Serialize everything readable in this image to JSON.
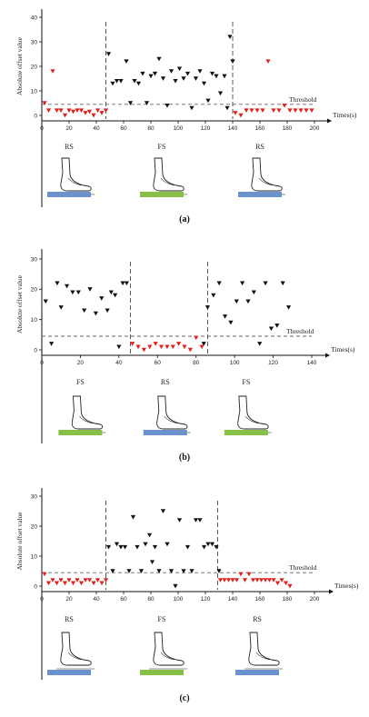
{
  "colors": {
    "black": "#111111",
    "red": "#e0201c",
    "blue": "#6a93cc",
    "green": "#86c046",
    "dash": "#666666"
  },
  "icons": [
    "foot-on-sensor-icon"
  ],
  "chart_data": [
    {
      "type": "scatter",
      "ylabel": "Absolute offset value",
      "xlabel": "Times(s)",
      "threshold_label": "Threshold",
      "threshold": 4.5,
      "xlim": [
        0,
        200
      ],
      "ylim": [
        0,
        40
      ],
      "xticks": [
        0,
        20,
        40,
        60,
        80,
        100,
        120,
        140,
        160,
        180,
        200
      ],
      "yticks": [
        0,
        10,
        20,
        30,
        40
      ],
      "boundaries": [
        47,
        140
      ],
      "phases": [
        {
          "label": "RS",
          "x": 20,
          "color": "blue"
        },
        {
          "label": "FS",
          "x": 88,
          "color": "green"
        },
        {
          "label": "RS",
          "x": 160,
          "color": "blue"
        }
      ],
      "panel_label": "(a)",
      "series": [
        {
          "color": "red",
          "points": [
            [
              2,
              5
            ],
            [
              8,
              18
            ],
            [
              5,
              2
            ],
            [
              11,
              2
            ],
            [
              14,
              2
            ],
            [
              17,
              0
            ],
            [
              20,
              2
            ],
            [
              23,
              1.5
            ],
            [
              26,
              2
            ],
            [
              29,
              2
            ],
            [
              32,
              1
            ],
            [
              35,
              1.5
            ],
            [
              38,
              0
            ],
            [
              41,
              2
            ],
            [
              44,
              1
            ],
            [
              47,
              2
            ],
            [
              142,
              1
            ],
            [
              146,
              0
            ],
            [
              150,
              2
            ],
            [
              154,
              2
            ],
            [
              158,
              2
            ],
            [
              162,
              2
            ],
            [
              166,
              22
            ],
            [
              170,
              2
            ],
            [
              174,
              2
            ],
            [
              178,
              4
            ],
            [
              182,
              2
            ],
            [
              186,
              2
            ],
            [
              190,
              2
            ],
            [
              194,
              2
            ],
            [
              198,
              2
            ]
          ]
        },
        {
          "color": "black",
          "points": [
            [
              49,
              25
            ],
            [
              52,
              13
            ],
            [
              55,
              14
            ],
            [
              58,
              14
            ],
            [
              62,
              22
            ],
            [
              65,
              5
            ],
            [
              68,
              14
            ],
            [
              71,
              13
            ],
            [
              74,
              17
            ],
            [
              77,
              5
            ],
            [
              80,
              16
            ],
            [
              83,
              17
            ],
            [
              86,
              23
            ],
            [
              89,
              15
            ],
            [
              92,
              4
            ],
            [
              95,
              18
            ],
            [
              98,
              14
            ],
            [
              101,
              19
            ],
            [
              104,
              15
            ],
            [
              107,
              17
            ],
            [
              110,
              3
            ],
            [
              113,
              15
            ],
            [
              116,
              18
            ],
            [
              119,
              13
            ],
            [
              122,
              6
            ],
            [
              125,
              17
            ],
            [
              128,
              16
            ],
            [
              131,
              9
            ],
            [
              134,
              16
            ],
            [
              136,
              3
            ],
            [
              138,
              32
            ],
            [
              140,
              22
            ]
          ]
        }
      ]
    },
    {
      "type": "scatter",
      "ylabel": "Absolute offset value",
      "xlabel": "Times(s)",
      "threshold_label": "Threshold",
      "threshold": 4.5,
      "xlim": [
        0,
        140
      ],
      "ylim": [
        0,
        30
      ],
      "xticks": [
        0,
        20,
        40,
        60,
        80,
        100,
        120,
        140
      ],
      "yticks": [
        0,
        10,
        20,
        30
      ],
      "boundaries": [
        46,
        86
      ],
      "phases": [
        {
          "label": "FS",
          "x": 20,
          "color": "green"
        },
        {
          "label": "RS",
          "x": 64,
          "color": "blue"
        },
        {
          "label": "FS",
          "x": 106,
          "color": "green"
        }
      ],
      "panel_label": "(b)",
      "series": [
        {
          "color": "black",
          "points": [
            [
              2,
              16
            ],
            [
              5,
              2
            ],
            [
              8,
              22
            ],
            [
              10,
              14
            ],
            [
              13,
              21
            ],
            [
              16,
              19
            ],
            [
              19,
              19
            ],
            [
              22,
              13
            ],
            [
              25,
              20
            ],
            [
              28,
              12
            ],
            [
              31,
              17
            ],
            [
              34,
              13
            ],
            [
              36,
              19
            ],
            [
              38,
              18
            ],
            [
              40,
              1
            ],
            [
              42,
              22
            ],
            [
              44,
              22
            ],
            [
              84,
              2
            ],
            [
              86,
              14
            ],
            [
              89,
              18
            ],
            [
              92,
              22
            ],
            [
              95,
              11
            ],
            [
              98,
              9
            ],
            [
              101,
              16
            ],
            [
              104,
              22
            ],
            [
              107,
              16
            ],
            [
              110,
              19
            ],
            [
              113,
              2
            ],
            [
              116,
              22
            ],
            [
              119,
              7
            ],
            [
              122,
              8
            ],
            [
              125,
              22
            ],
            [
              128,
              14
            ]
          ]
        },
        {
          "color": "red",
          "points": [
            [
              47,
              2
            ],
            [
              50,
              1
            ],
            [
              53,
              0
            ],
            [
              56,
              1
            ],
            [
              59,
              2
            ],
            [
              62,
              1
            ],
            [
              65,
              1
            ],
            [
              68,
              1
            ],
            [
              71,
              2
            ],
            [
              74,
              1
            ],
            [
              77,
              0
            ],
            [
              80,
              4
            ],
            [
              83,
              1
            ]
          ]
        }
      ]
    },
    {
      "type": "scatter",
      "ylabel": "Absolute offset value",
      "xlabel": "Times(s)",
      "threshold_label": "Threshold",
      "threshold": 4.5,
      "xlim": [
        0,
        200
      ],
      "ylim": [
        0,
        30
      ],
      "xticks": [
        0,
        20,
        40,
        60,
        80,
        100,
        120,
        140,
        160,
        180,
        200
      ],
      "yticks": [
        0,
        10,
        20,
        30
      ],
      "boundaries": [
        47,
        129
      ],
      "phases": [
        {
          "label": "RS",
          "x": 20,
          "color": "blue"
        },
        {
          "label": "FS",
          "x": 88,
          "color": "green"
        },
        {
          "label": "RS",
          "x": 158,
          "color": "blue"
        }
      ],
      "panel_label": "(c)",
      "series": [
        {
          "color": "red",
          "points": [
            [
              2,
              4
            ],
            [
              5,
              1
            ],
            [
              8,
              2
            ],
            [
              11,
              1
            ],
            [
              14,
              2
            ],
            [
              17,
              1
            ],
            [
              20,
              2
            ],
            [
              23,
              1
            ],
            [
              26,
              2
            ],
            [
              29,
              1
            ],
            [
              32,
              2
            ],
            [
              35,
              2
            ],
            [
              38,
              1
            ],
            [
              41,
              2
            ],
            [
              44,
              1
            ],
            [
              47,
              2
            ],
            [
              131,
              2
            ],
            [
              134,
              2
            ],
            [
              137,
              2
            ],
            [
              140,
              2
            ],
            [
              143,
              2
            ],
            [
              146,
              4
            ],
            [
              149,
              2
            ],
            [
              152,
              4
            ],
            [
              155,
              2
            ],
            [
              158,
              2
            ],
            [
              161,
              2
            ],
            [
              164,
              2
            ],
            [
              167,
              2
            ],
            [
              170,
              2
            ],
            [
              173,
              1
            ],
            [
              176,
              2
            ],
            [
              179,
              1
            ],
            [
              182,
              0
            ]
          ]
        },
        {
          "color": "black",
          "points": [
            [
              49,
              13
            ],
            [
              52,
              5
            ],
            [
              55,
              14
            ],
            [
              58,
              13
            ],
            [
              61,
              13
            ],
            [
              64,
              5
            ],
            [
              67,
              23
            ],
            [
              70,
              13
            ],
            [
              73,
              5
            ],
            [
              76,
              14
            ],
            [
              79,
              17
            ],
            [
              81,
              8
            ],
            [
              83,
              13
            ],
            [
              86,
              5
            ],
            [
              89,
              25
            ],
            [
              92,
              14
            ],
            [
              95,
              5
            ],
            [
              98,
              0
            ],
            [
              101,
              22
            ],
            [
              104,
              5
            ],
            [
              107,
              13
            ],
            [
              110,
              5
            ],
            [
              113,
              22
            ],
            [
              116,
              22
            ],
            [
              119,
              13
            ],
            [
              122,
              14
            ],
            [
              125,
              14
            ],
            [
              128,
              13
            ],
            [
              130,
              5
            ]
          ]
        }
      ]
    }
  ]
}
